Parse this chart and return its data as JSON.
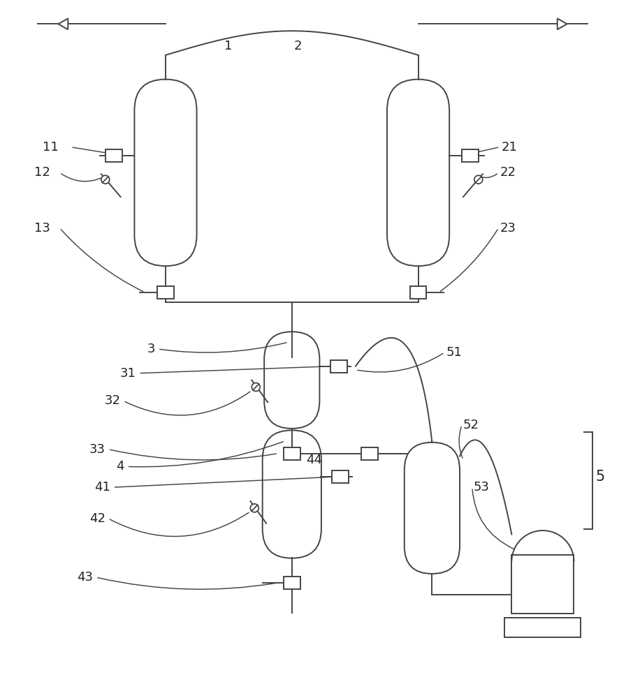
{
  "bg_color": "#ffffff",
  "line_color": "#444444",
  "line_width": 1.4,
  "fig_width": 8.96,
  "fig_height": 10.0
}
